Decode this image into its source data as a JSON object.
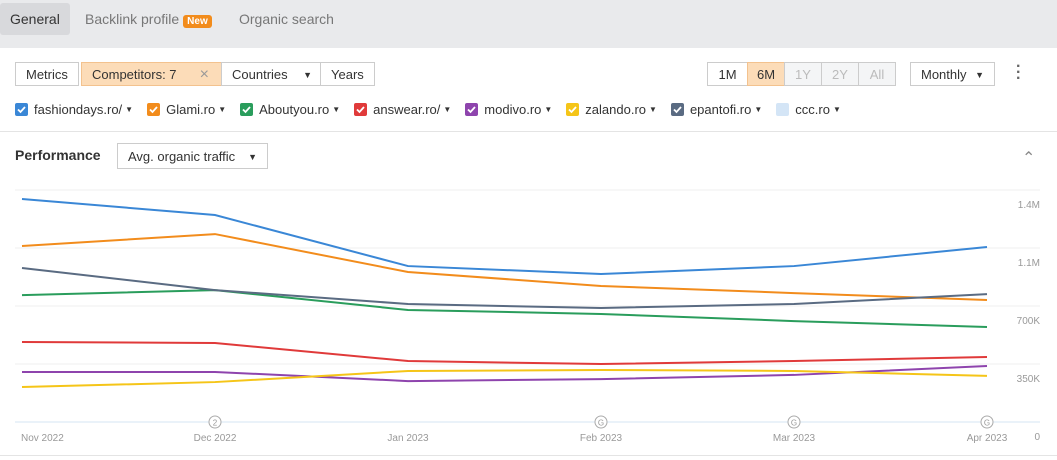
{
  "tabs": [
    {
      "label": "General"
    },
    {
      "label": "Backlink profile",
      "badge": "New"
    },
    {
      "label": "Organic search"
    }
  ],
  "toolbar": {
    "metrics": "Metrics",
    "competitors": "Competitors: 7",
    "countries": "Countries",
    "years": "Years",
    "periods": [
      "1M",
      "6M",
      "1Y",
      "2Y",
      "All"
    ],
    "active_period": "6M",
    "disabled_periods": [
      "1Y",
      "2Y",
      "All"
    ],
    "interval": "Monthly"
  },
  "section": {
    "title": "Performance",
    "metric": "Avg. organic traffic"
  },
  "chart_data": {
    "type": "line",
    "categories": [
      "Nov 2022",
      "Dec 2022",
      "Jan 2023",
      "Feb 2023",
      "Mar 2023",
      "Apr 2023"
    ],
    "ylim": [
      0,
      1400000
    ],
    "yticks": [
      0,
      {
        "value": 350000,
        "label": "350K"
      },
      {
        "value": 700000,
        "label": "700K"
      },
      {
        "value": 1050000,
        "label": "1.1M"
      },
      {
        "value": 1400000,
        "label": "1.4M"
      }
    ],
    "grid": true,
    "series": [
      {
        "name": "fashiondays.ro/",
        "color": "#3a87d6",
        "checked": true,
        "values": [
          1346000,
          1249000,
          941000,
          893000,
          941000,
          1056000
        ]
      },
      {
        "name": "Glami.ro",
        "color": "#f28c1c",
        "checked": true,
        "values": [
          1062000,
          1134000,
          905000,
          821000,
          778000,
          736000
        ]
      },
      {
        "name": "Aboutyou.ro",
        "color": "#2a9d5c",
        "checked": true,
        "values": [
          766000,
          796000,
          676000,
          652000,
          609000,
          573000
        ]
      },
      {
        "name": "answear.ro/",
        "color": "#e03a3a",
        "checked": true,
        "values": [
          483000,
          477000,
          368000,
          350000,
          368000,
          392000
        ]
      },
      {
        "name": "modivo.ro",
        "color": "#8e44ad",
        "checked": true,
        "values": [
          302000,
          302000,
          247000,
          259000,
          284000,
          338000
        ]
      },
      {
        "name": "zalando.ro",
        "color": "#f5c518",
        "checked": true,
        "values": [
          211000,
          241000,
          308000,
          314000,
          308000,
          278000
        ]
      },
      {
        "name": "epantofi.ro",
        "color": "#5a6b82",
        "checked": true,
        "values": [
          929000,
          796000,
          712000,
          688000,
          712000,
          772000
        ]
      },
      {
        "name": "ccc.ro",
        "color": "#cfe2f5",
        "checked": false,
        "values": [
          null,
          null,
          null,
          null,
          null,
          null
        ]
      }
    ],
    "annotations": [
      {
        "category": "Dec 2022",
        "label": "2"
      },
      {
        "category": "Feb 2023",
        "label": "G"
      },
      {
        "category": "Mar 2023",
        "label": "G"
      },
      {
        "category": "Apr 2023",
        "label": "G"
      }
    ]
  }
}
